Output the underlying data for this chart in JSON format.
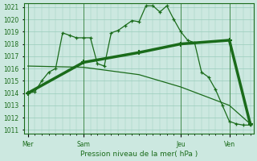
{
  "background_color": "#cce8e0",
  "plot_bg_color": "#cce8e0",
  "grid_color": "#99ccbb",
  "line_color": "#1a6b1a",
  "ylabel_min": 1011,
  "ylabel_max": 1021,
  "xlabel_label": "Pression niveau de la mer( hPa )",
  "xtick_labels": [
    "Mer",
    "Sam",
    "Jeu",
    "Ven"
  ],
  "xtick_positions": [
    0,
    8,
    22,
    29
  ],
  "vline_positions": [
    0,
    8,
    22,
    29
  ],
  "series1_x": [
    0,
    1,
    2,
    3,
    4,
    5,
    6,
    7,
    8,
    9,
    10,
    11,
    12,
    13,
    14,
    15,
    16,
    17,
    18,
    19,
    20,
    21,
    22,
    23,
    24,
    25,
    26,
    27,
    28,
    29,
    30,
    31,
    32
  ],
  "series1_y": [
    1014.0,
    1014.1,
    1015.0,
    1015.7,
    1016.0,
    1018.9,
    1018.7,
    1018.5,
    1018.5,
    1018.5,
    1016.4,
    1016.2,
    1018.9,
    1019.1,
    1019.5,
    1019.9,
    1019.8,
    1021.1,
    1021.1,
    1020.6,
    1021.1,
    1020.0,
    1019.0,
    1018.3,
    1018.1,
    1015.7,
    1015.3,
    1014.3,
    1013.0,
    1011.7,
    1011.5,
    1011.4,
    1011.4
  ],
  "series2_x": [
    0,
    8,
    16,
    22,
    29,
    32
  ],
  "series2_y": [
    1014.0,
    1016.5,
    1017.3,
    1018.0,
    1018.3,
    1011.5
  ],
  "series3_x": [
    0,
    8,
    16,
    22,
    29,
    32
  ],
  "series3_y": [
    1016.2,
    1016.1,
    1015.5,
    1014.5,
    1013.0,
    1011.5
  ],
  "figsize": [
    3.2,
    2.0
  ],
  "dpi": 100
}
